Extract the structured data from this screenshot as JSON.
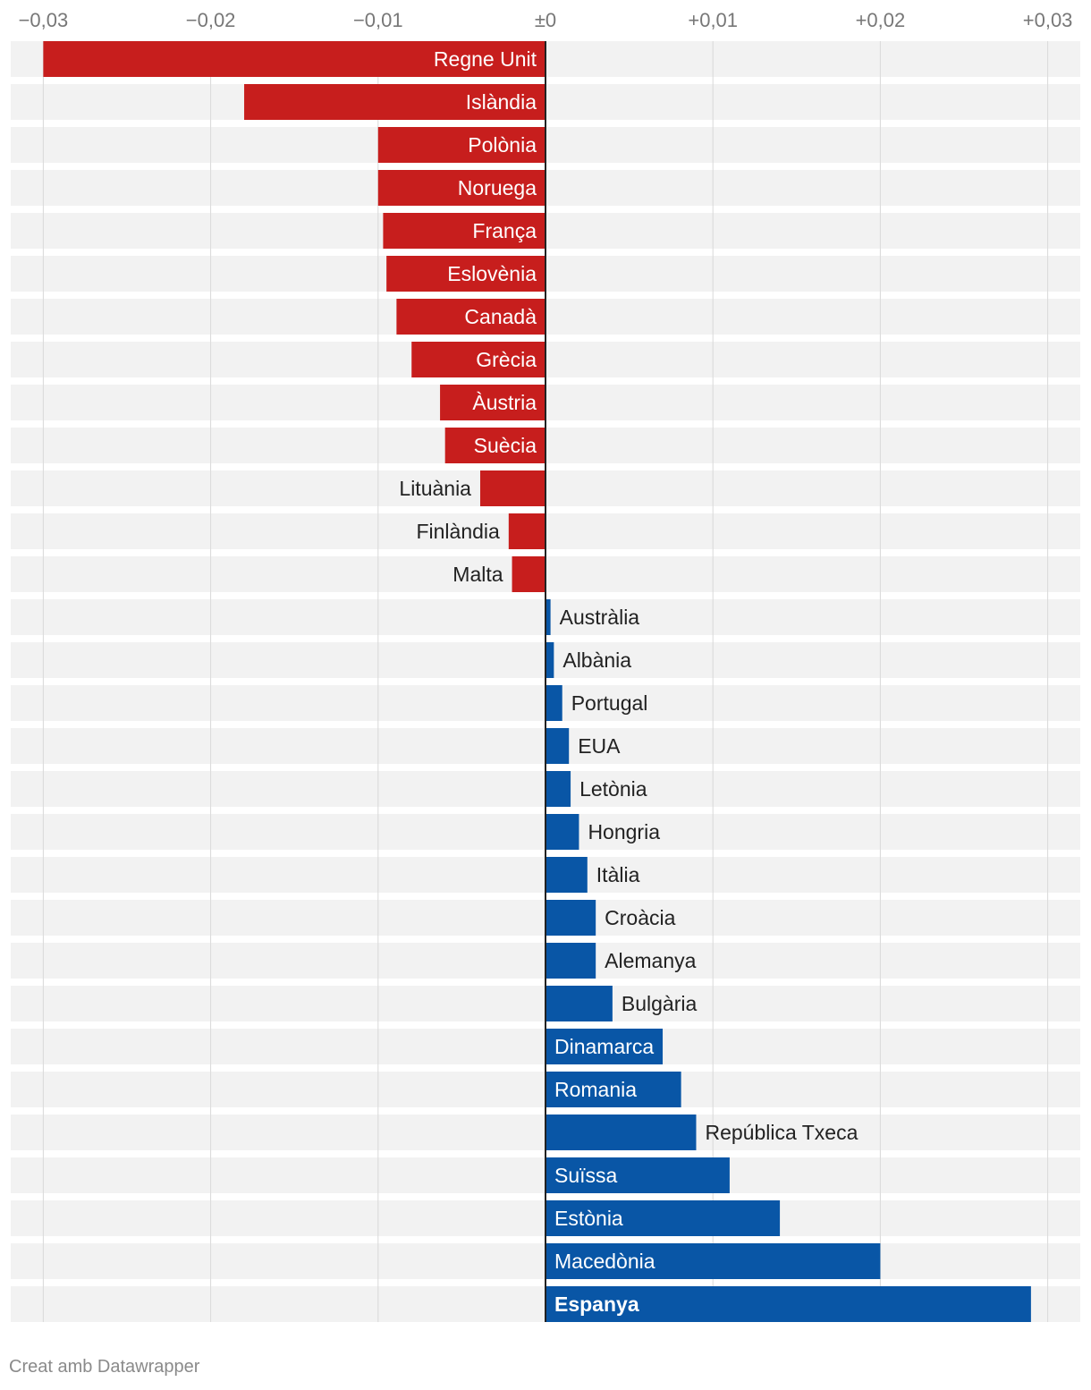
{
  "chart_data": {
    "type": "bar",
    "orientation": "horizontal",
    "xlim": [
      -0.03,
      0.03
    ],
    "ticks": [
      {
        "value": -0.03,
        "label": "−0,03"
      },
      {
        "value": -0.02,
        "label": "−0,02"
      },
      {
        "value": -0.01,
        "label": "−0,01"
      },
      {
        "value": 0,
        "label": "±0"
      },
      {
        "value": 0.01,
        "label": "+0,01"
      },
      {
        "value": 0.02,
        "label": "+0,02"
      },
      {
        "value": 0.03,
        "label": "+0,03"
      }
    ],
    "categories": [
      "Regne Unit",
      "Islàndia",
      "Polònia",
      "Noruega",
      "França",
      "Eslovènia",
      "Canadà",
      "Grècia",
      "Àustria",
      "Suècia",
      "Lituània",
      "Finlàndia",
      "Malta",
      "Austràlia",
      "Albània",
      "Portugal",
      "EUA",
      "Letònia",
      "Hongria",
      "Itàlia",
      "Croàcia",
      "Alemanya",
      "Bulgària",
      "Dinamarca",
      "Romania",
      "República Txeca",
      "Suïssa",
      "Estònia",
      "Macedònia",
      "Espanya"
    ],
    "values": [
      -0.03,
      -0.018,
      -0.01,
      -0.01,
      -0.0097,
      -0.0095,
      -0.0089,
      -0.008,
      -0.0063,
      -0.006,
      -0.0039,
      -0.0022,
      -0.002,
      0.0003,
      0.0005,
      0.001,
      0.0014,
      0.0015,
      0.002,
      0.0025,
      0.003,
      0.003,
      0.004,
      0.007,
      0.0081,
      0.009,
      0.011,
      0.014,
      0.02,
      0.029
    ],
    "highlight": "Espanya",
    "grid": true
  },
  "colors": {
    "negative": "#c71e1d",
    "positive": "#0956a6",
    "row_background": "#f2f2f2",
    "gridline": "#d9d9d9",
    "zero_line": "#222222",
    "tick_text": "#777777"
  },
  "footer": "Creat amb Datawrapper"
}
